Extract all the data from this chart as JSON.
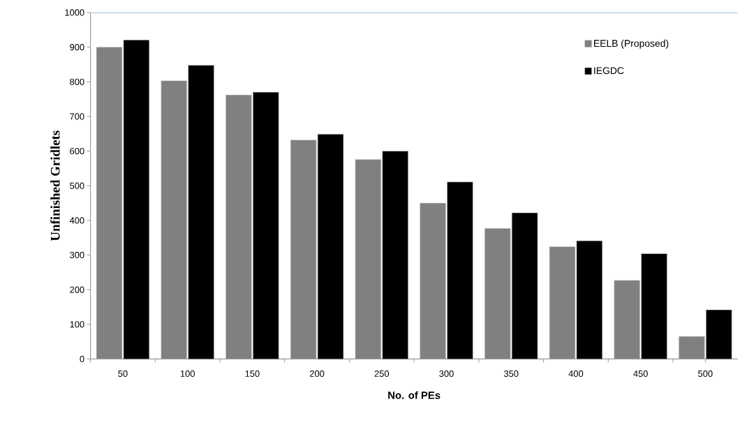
{
  "chart_data": {
    "type": "bar",
    "xlabel": "No. of PEs",
    "ylabel": "Unfinished  Gridlets",
    "categories": [
      "50",
      "100",
      "150",
      "200",
      "250",
      "300",
      "350",
      "400",
      "450",
      "500"
    ],
    "series": [
      {
        "name": "EELB (Proposed)",
        "color": "#808080",
        "values": [
          900,
          803,
          762,
          632,
          576,
          450,
          377,
          324,
          227,
          65
        ]
      },
      {
        "name": "IEGDC",
        "color": "#000000",
        "values": [
          921,
          848,
          770,
          649,
          600,
          511,
          422,
          341,
          304,
          142
        ]
      }
    ],
    "ylim": [
      0,
      1000
    ],
    "yticks": [
      0,
      100,
      200,
      300,
      400,
      500,
      600,
      700,
      800,
      900,
      1000
    ],
    "grid": false,
    "legend": "top right"
  }
}
